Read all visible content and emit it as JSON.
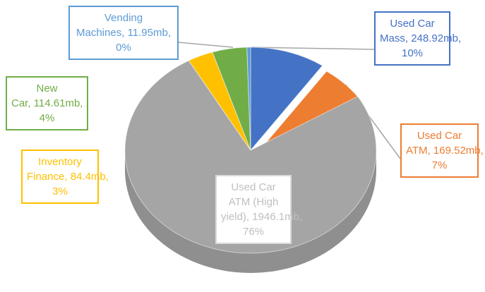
{
  "chart_data": {
    "type": "pie3d",
    "categories": [
      "Used Car Mass,",
      "Used Car ATM,",
      "Used Car ATM (High yield),",
      "Inventory Finance,",
      "New Car,",
      "Vending Machines,"
    ],
    "values": [
      248.92,
      169.52,
      1946.1,
      84.4,
      114.61,
      11.95
    ],
    "value_labels": [
      "248.92mb, 10%",
      "169.52mb, 7%",
      "1946.1mb, 76%",
      "84.4mb, 3%",
      "114.61mb, 4%",
      "11.95mb, 0%"
    ],
    "colors": [
      "#4472c4",
      "#ed7d31",
      "#a5a5a5",
      "#ffc000",
      "#70ad47",
      "#5b9bd5"
    ]
  }
}
